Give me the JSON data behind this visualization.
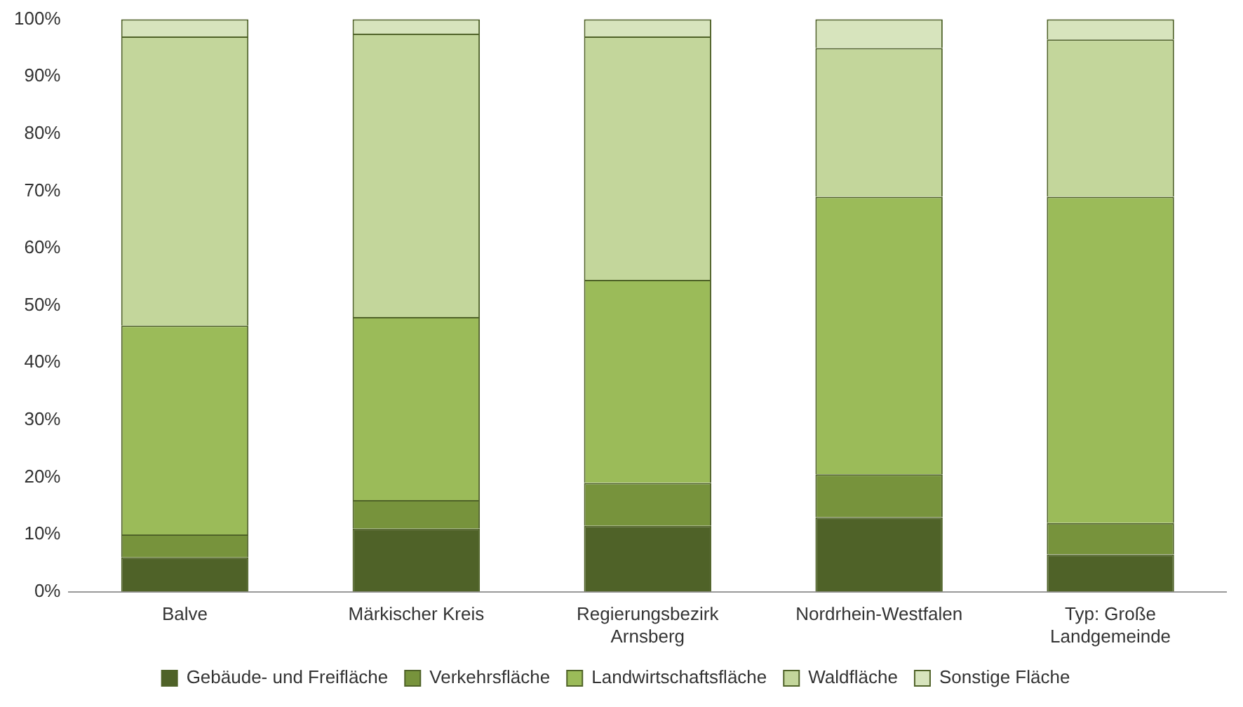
{
  "chart_data": {
    "type": "bar",
    "stacked": true,
    "categories": [
      "Balve",
      "Märkischer Kreis",
      "Regierungsbezirk Arnsberg",
      "Nordrhein-Westfalen",
      "Typ: Große Landgemeinde"
    ],
    "series": [
      {
        "name": "Gebäude- und Freifläche",
        "color": "#4f6228",
        "values": [
          6,
          11,
          11.5,
          13,
          6.5
        ]
      },
      {
        "name": "Verkehrsfläche",
        "color": "#77933c",
        "values": [
          4,
          5,
          7.5,
          7.5,
          5.5
        ]
      },
      {
        "name": "Landwirtschaftsfläche",
        "color": "#9bbb59",
        "values": [
          36.5,
          32,
          35.5,
          48.5,
          57
        ]
      },
      {
        "name": "Waldfläche",
        "color": "#c3d69b",
        "values": [
          50.5,
          49.5,
          42.5,
          26,
          27.5
        ]
      },
      {
        "name": "Sonstige Fläche",
        "color": "#d7e4bd",
        "values": [
          3,
          2.5,
          3,
          5,
          3.5
        ]
      }
    ],
    "ylim": [
      0,
      100
    ],
    "yticks": [
      {
        "value": 0,
        "label": "0%"
      },
      {
        "value": 10,
        "label": "10%"
      },
      {
        "value": 20,
        "label": "20%"
      },
      {
        "value": 30,
        "label": "30%"
      },
      {
        "value": 40,
        "label": "40%"
      },
      {
        "value": 50,
        "label": "50%"
      },
      {
        "value": 60,
        "label": "60%"
      },
      {
        "value": 70,
        "label": "70%"
      },
      {
        "value": 80,
        "label": "80%"
      },
      {
        "value": 90,
        "label": "90%"
      },
      {
        "value": 100,
        "label": "100%"
      }
    ],
    "grid": false,
    "legend": "bottom"
  }
}
